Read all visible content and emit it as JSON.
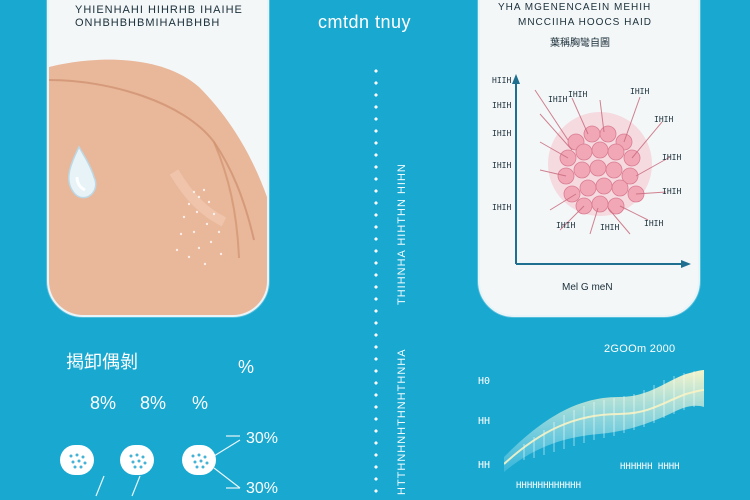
{
  "left_card": {
    "title_line1": "YHIENHAHI HIHRHB IHAIHE",
    "title_line2": "ONHBHBHBMIHAHBHBH"
  },
  "center": {
    "title": "cmtdn tnuy",
    "side_text_1": "THIHNHA HIHTHN HIHN",
    "side_text_2": "HTTHNHNHTHNHTHNHA"
  },
  "right_card": {
    "title_line1": "YHA MGENENCAEIN MEHIH",
    "title_line2": "MNCCIIHA HOOCS HAID",
    "title_line3": "葉稱胸彎自圖",
    "chart_label": "Mel G meN"
  },
  "bottom_left": {
    "title": "揭卸偶剝",
    "percent_top": "%",
    "percent_row": [
      "8%",
      "8%",
      "%"
    ],
    "percent_right_1": "30%",
    "percent_right_2": "30%"
  },
  "bottom_right": {
    "header": "2GOOm  2000",
    "axis_label_1": "H0",
    "axis_label_2": "HH",
    "axis_label_3": "HH",
    "footer_1": "HHHHHH HHHH",
    "footer_2": "HHHHHHHHHHHH"
  },
  "colors": {
    "background": "#19a8d0",
    "card": "#f3f7f8",
    "skin": "#e7b18f",
    "cells": "#f2a6b6",
    "axis": "#1f6f90"
  }
}
